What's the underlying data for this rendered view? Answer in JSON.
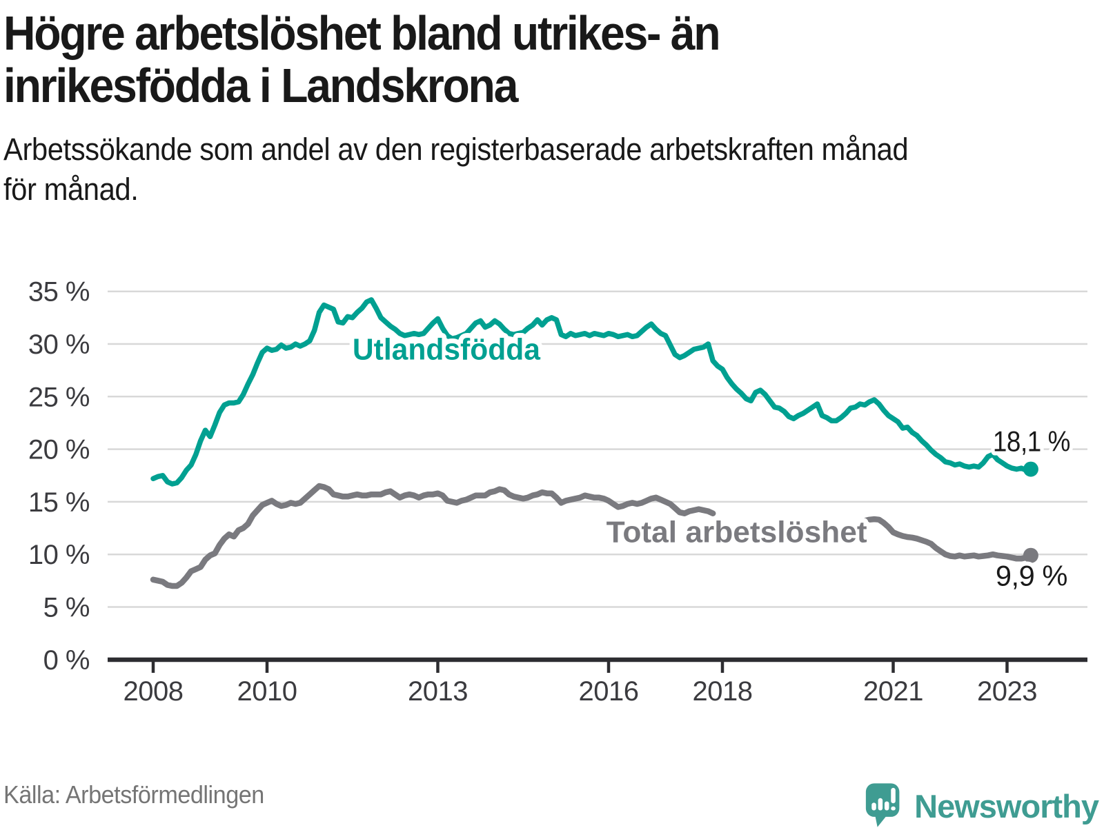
{
  "title": "Högre arbetslöshet bland utrikes- än\ninrikesfödda i Landskrona",
  "subtitle": "Arbetssökande som andel av den registerbaserade arbetskraften månad\nför månad.",
  "source": "Källa: Arbetsförmedlingen",
  "logo": {
    "text": "Newsworthy",
    "icon": "bar-chart-bubble-icon",
    "color": "#3f9c92"
  },
  "colors": {
    "teal": "#00a091",
    "gray": "#7a7a7f",
    "axis": "#2d2d31",
    "grid": "#d8d8d8",
    "tick_text": "#3b3b3f",
    "annotation_text": "#1a1a1a"
  },
  "chart_data": {
    "type": "line",
    "title": "Högre arbetslöshet bland utrikes- än inrikesfödda i Landskrona",
    "subtitle": "Arbetssökande som andel av den registerbaserade arbetskraften månad för månad.",
    "xlabel": "",
    "ylabel": "",
    "x_unit": "year (monthly data)",
    "y_unit": "%",
    "xlim": [
      2007.2,
      2024.4
    ],
    "ylim": [
      0,
      36.5
    ],
    "grid": "horizontal",
    "legend_position": "inline-labels",
    "x_ticks": [
      2008,
      2010,
      2013,
      2016,
      2018,
      2021,
      2023
    ],
    "y_ticks": [
      {
        "v": 0,
        "label": "0 %"
      },
      {
        "v": 5,
        "label": "5 %"
      },
      {
        "v": 10,
        "label": "10 %"
      },
      {
        "v": 15,
        "label": "15 %"
      },
      {
        "v": 20,
        "label": "20 %"
      },
      {
        "v": 25,
        "label": "25 %"
      },
      {
        "v": 30,
        "label": "30 %"
      },
      {
        "v": 35,
        "label": "35 %"
      }
    ],
    "series": [
      {
        "id": "utlandsfodda",
        "name": "Utlandsfödda",
        "color": "#00a091",
        "end_label": "18,1 %",
        "end_value": 18.1,
        "label": {
          "x": 2013.15,
          "y": 29.5
        },
        "segments": [
          {
            "start": 2008.0,
            "step_months": 1,
            "values": [
              17.2,
              17.4,
              17.5,
              16.9,
              16.7,
              16.8,
              17.3,
              18.0,
              18.5,
              19.5,
              20.8,
              21.8,
              21.2,
              22.3,
              23.5,
              24.2,
              24.4,
              24.4,
              24.5,
              25.2,
              26.2,
              27.1,
              28.2,
              29.2,
              29.6,
              29.4,
              29.5,
              29.9,
              29.6,
              29.7,
              30.0,
              29.8,
              30.0,
              30.3,
              31.3,
              33.0,
              33.7,
              33.5,
              33.3,
              32.1,
              32.0,
              32.6,
              32.5,
              33.0,
              33.4,
              34.0,
              34.2,
              33.4,
              32.5,
              32.1,
              31.7,
              31.4,
              31.0,
              30.8,
              30.9,
              31.0,
              30.9,
              31.0,
              31.5,
              32.0,
              32.4,
              31.5,
              30.8,
              30.5,
              30.6,
              30.8,
              31.0,
              31.5,
              32.0,
              32.2,
              31.6,
              31.8,
              32.2,
              31.9,
              31.4,
              31.0,
              30.9,
              31.0,
              31.1,
              31.5,
              31.8,
              32.3,
              31.8,
              32.3,
              32.5,
              32.3,
              30.9,
              30.7,
              31.0,
              30.8,
              30.9,
              31.0,
              30.8,
              31.0,
              30.9,
              30.8,
              31.0,
              30.9,
              30.7,
              30.8,
              30.9,
              30.7,
              30.8,
              31.2,
              31.6,
              31.9,
              31.4,
              31.0,
              30.8,
              29.9,
              29.0,
              28.7,
              28.9,
              29.2,
              29.5,
              29.6,
              29.7,
              30.0,
              28.4,
              27.9,
              27.6,
              26.8,
              26.2,
              25.7,
              25.3,
              24.8,
              24.6,
              25.4,
              25.6,
              25.2,
              24.6,
              24.0,
              23.9,
              23.6,
              23.1,
              22.9,
              23.2,
              23.4,
              23.7,
              24.0,
              24.3,
              23.2,
              23.0,
              22.7,
              22.7,
              23.0,
              23.4,
              23.9,
              24.0,
              24.3,
              24.2,
              24.5,
              24.7,
              24.3,
              23.7,
              23.2,
              22.9,
              22.6,
              22.0,
              22.1,
              21.6,
              21.3,
              20.8,
              20.4,
              19.9,
              19.5,
              19.2,
              18.8,
              18.7,
              18.5,
              18.6,
              18.4,
              18.3,
              18.4,
              18.3,
              18.7,
              19.3,
              19.5,
              19.0,
              18.7,
              18.4,
              18.2,
              18.1,
              18.2,
              18.0,
              18.1
            ]
          }
        ]
      },
      {
        "id": "total-arbetsloshet",
        "name": "Total arbetslöshet",
        "color": "#7a7a7f",
        "end_label": "9,9 %",
        "end_value": 9.9,
        "label": {
          "x": 2018.25,
          "y": 12.15
        },
        "segments": [
          {
            "start": 2008.0,
            "step_months": 1,
            "values": [
              7.6,
              7.5,
              7.4,
              7.1,
              7.0,
              7.0,
              7.3,
              7.8,
              8.4,
              8.6,
              8.8,
              9.5,
              9.9,
              10.1,
              10.9,
              11.5,
              11.9,
              11.7,
              12.3,
              12.5,
              12.9,
              13.7,
              14.2,
              14.7,
              14.9,
              15.1,
              14.8,
              14.6,
              14.7,
              14.9,
              14.8,
              14.9,
              15.3,
              15.7,
              16.1,
              16.5,
              16.4,
              16.2,
              15.7,
              15.6,
              15.5,
              15.5,
              15.6,
              15.7,
              15.6,
              15.6,
              15.7,
              15.7,
              15.7,
              15.9,
              16.0,
              15.7,
              15.4,
              15.6,
              15.7,
              15.6,
              15.4,
              15.6,
              15.7,
              15.7,
              15.8,
              15.6,
              15.1,
              15.0,
              14.9,
              15.1,
              15.2,
              15.4,
              15.6,
              15.6,
              15.6,
              15.9,
              16.0,
              16.2,
              16.1,
              15.7,
              15.5,
              15.4,
              15.3,
              15.4,
              15.6,
              15.7,
              15.9,
              15.8,
              15.8,
              15.4,
              14.9,
              15.1,
              15.2,
              15.3,
              15.4,
              15.6,
              15.5,
              15.4,
              15.4,
              15.3,
              15.1,
              14.8,
              14.5,
              14.6,
              14.8,
              14.9,
              14.8,
              14.9,
              15.1,
              15.3,
              15.4,
              15.2,
              15.0,
              14.8,
              14.4,
              14.0,
              13.9,
              14.1,
              14.2,
              14.3,
              14.2,
              14.1,
              13.9
            ]
          },
          {
            "start": 2020.5,
            "step_months": 1,
            "values": [
              13.2,
              13.3,
              13.35,
              13.3,
              13.0,
              12.6,
              12.1,
              11.9,
              11.75,
              11.65,
              11.6,
              11.5,
              11.35,
              11.2,
              11.0,
              10.6,
              10.3,
              10.0,
              9.85,
              9.8,
              9.9,
              9.8,
              9.85,
              9.9,
              9.8,
              9.85,
              9.9,
              10.0,
              9.9,
              9.85,
              9.8,
              9.7,
              9.6,
              9.6,
              9.7,
              9.9
            ]
          }
        ]
      }
    ]
  }
}
